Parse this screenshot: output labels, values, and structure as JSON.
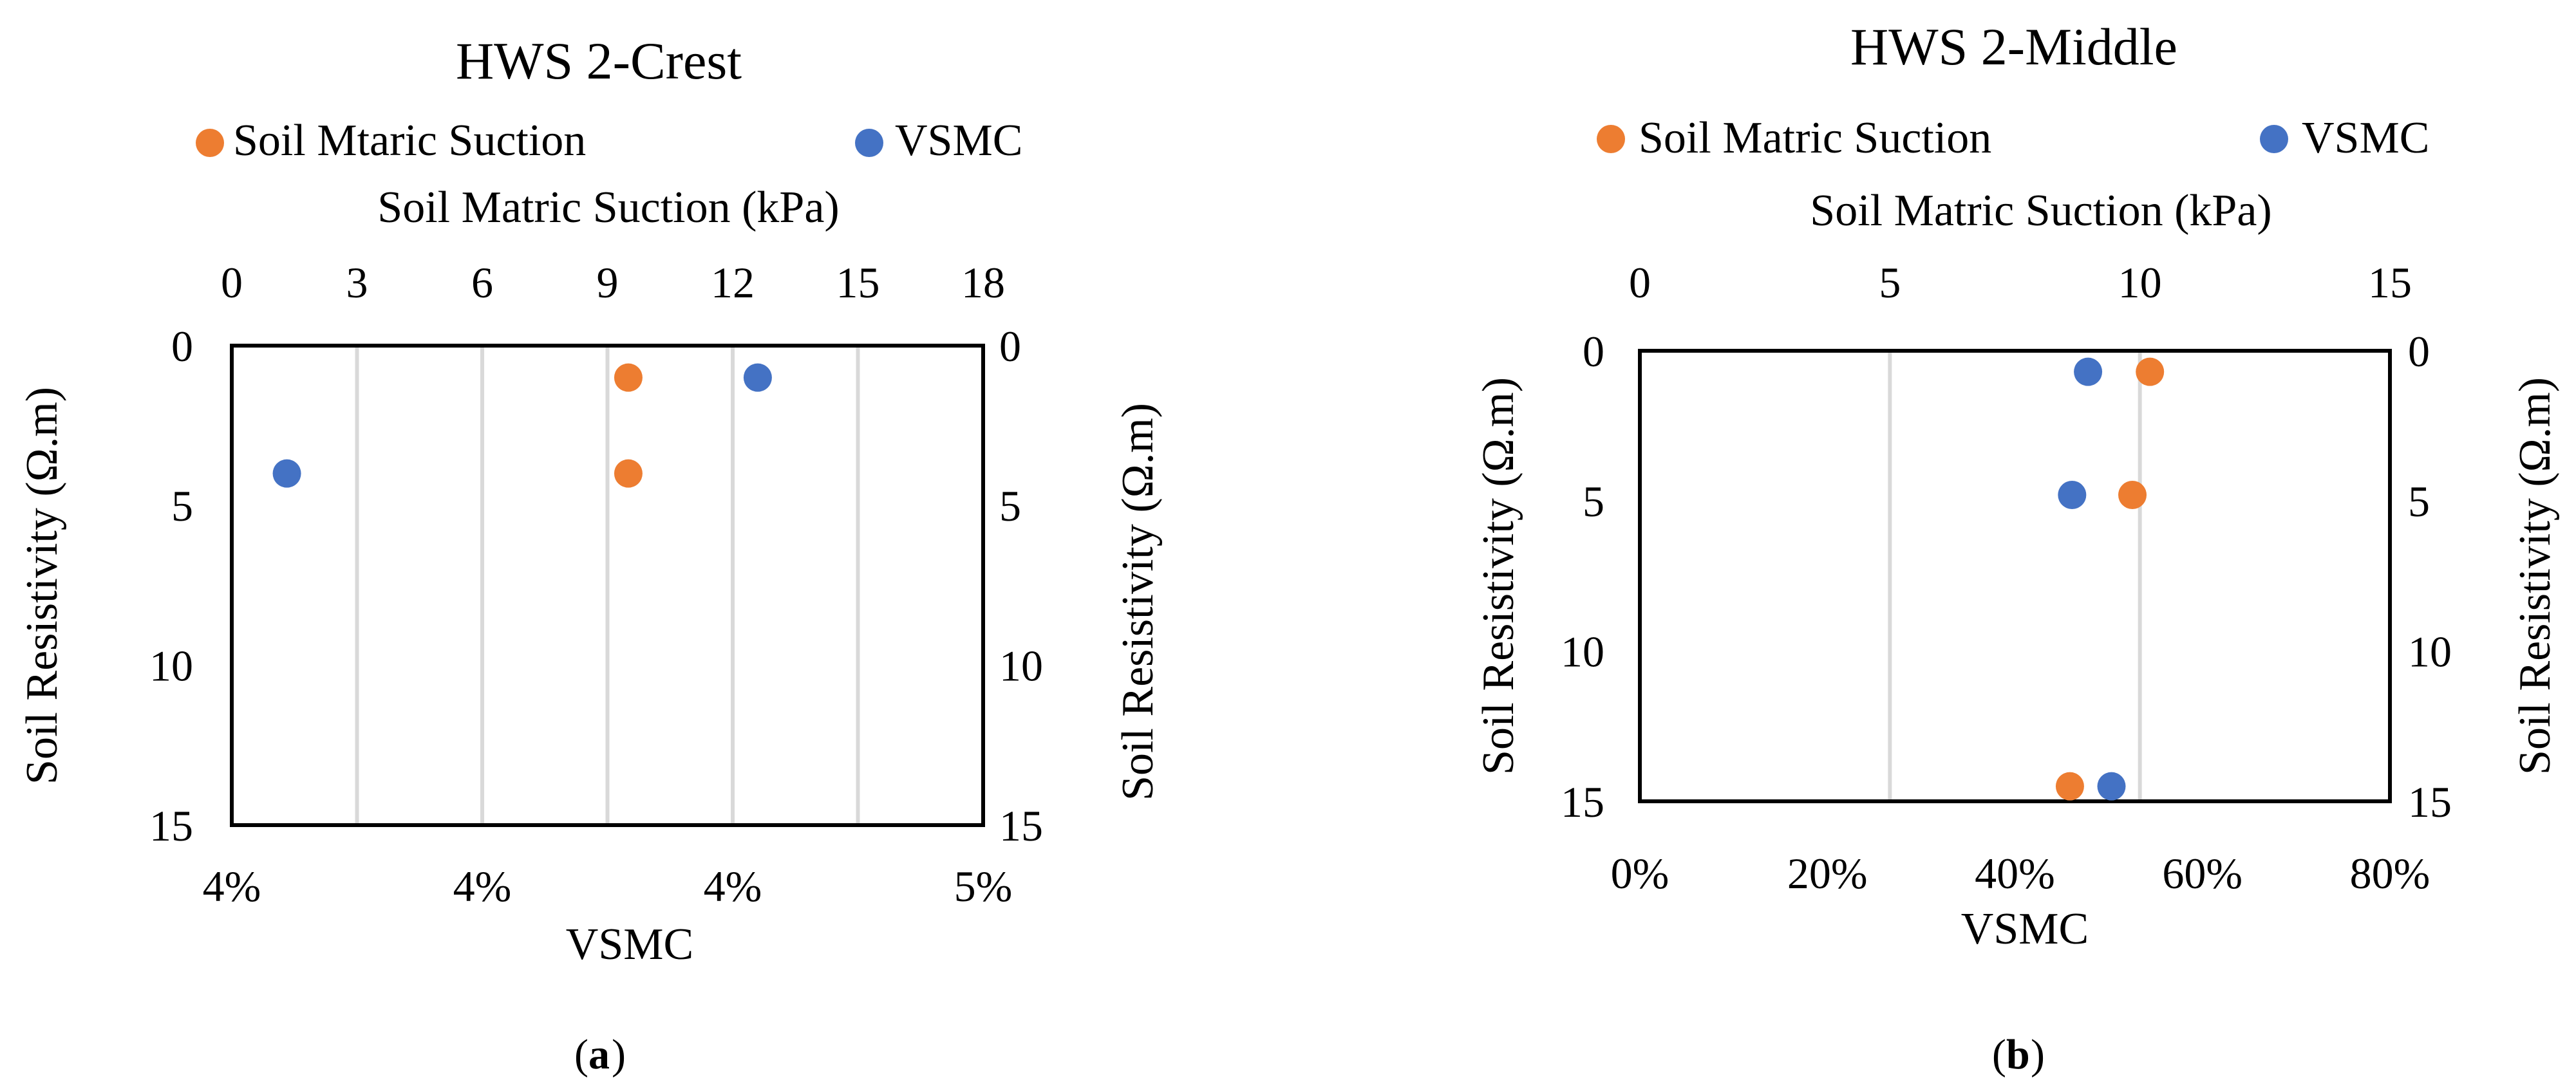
{
  "chart_data": [
    {
      "type": "scatter",
      "title": "HWS 2-Crest",
      "top_axis_label": "Soil Matric Suction (kPa)",
      "top_axis_ticks": [
        "0",
        "3",
        "6",
        "9",
        "12",
        "15",
        "18"
      ],
      "top_xlim": [
        0,
        18
      ],
      "bottom_axis_label": "VSMC",
      "bottom_axis_ticks": [
        "4%",
        "4%",
        "4%",
        "5%"
      ],
      "bottom_xlim": [
        0.035,
        0.05
      ],
      "left_ylabel": "Soil Resistivity (Ω.m)",
      "right_ylabel": "Soil Resistivity (Ω.m)",
      "y_ticks": [
        "0",
        "5",
        "10",
        "15"
      ],
      "ylim": [
        0,
        15
      ],
      "y_inverted": true,
      "grid": "vertical",
      "legend_position": "top",
      "series": [
        {
          "name": "Soil Mtaric Suction",
          "axis": "top",
          "color": "#ED7D31",
          "points": [
            {
              "x": 9.5,
              "y": 1
            },
            {
              "x": 9.5,
              "y": 4
            }
          ]
        },
        {
          "name": "VSMC",
          "axis": "bottom",
          "color": "#4472C4",
          "points": [
            {
              "x": 0.0455,
              "y": 1
            },
            {
              "x": 0.0361,
              "y": 4
            }
          ]
        }
      ],
      "caption": "a"
    },
    {
      "type": "scatter",
      "title": "HWS 2-Middle",
      "top_axis_label": "Soil Matric Suction (kPa)",
      "top_axis_ticks": [
        "0",
        "5",
        "10",
        "15"
      ],
      "top_xlim": [
        0,
        15
      ],
      "bottom_axis_label": "VSMC",
      "bottom_axis_ticks": [
        "0%",
        "20%",
        "40%",
        "60%",
        "80%"
      ],
      "bottom_xlim": [
        0,
        0.8
      ],
      "left_ylabel": "Soil Resistivity (Ω.m)",
      "right_ylabel": "Soil Resistivity (Ω.m)",
      "y_ticks": [
        "0",
        "5",
        "10",
        "15"
      ],
      "ylim": [
        0,
        15
      ],
      "y_inverted": true,
      "grid": "vertical",
      "legend_position": "top",
      "series": [
        {
          "name": "Soil Matric Suction",
          "axis": "top",
          "color": "#ED7D31",
          "points": [
            {
              "x": 10.2,
              "y": 0.7
            },
            {
              "x": 9.85,
              "y": 4.8
            },
            {
              "x": 8.6,
              "y": 14.5
            }
          ]
        },
        {
          "name": "VSMC",
          "axis": "bottom",
          "color": "#4472C4",
          "points": [
            {
              "x": 0.478,
              "y": 0.7
            },
            {
              "x": 0.461,
              "y": 4.8
            },
            {
              "x": 0.503,
              "y": 14.5
            }
          ]
        }
      ],
      "caption": "b"
    }
  ]
}
